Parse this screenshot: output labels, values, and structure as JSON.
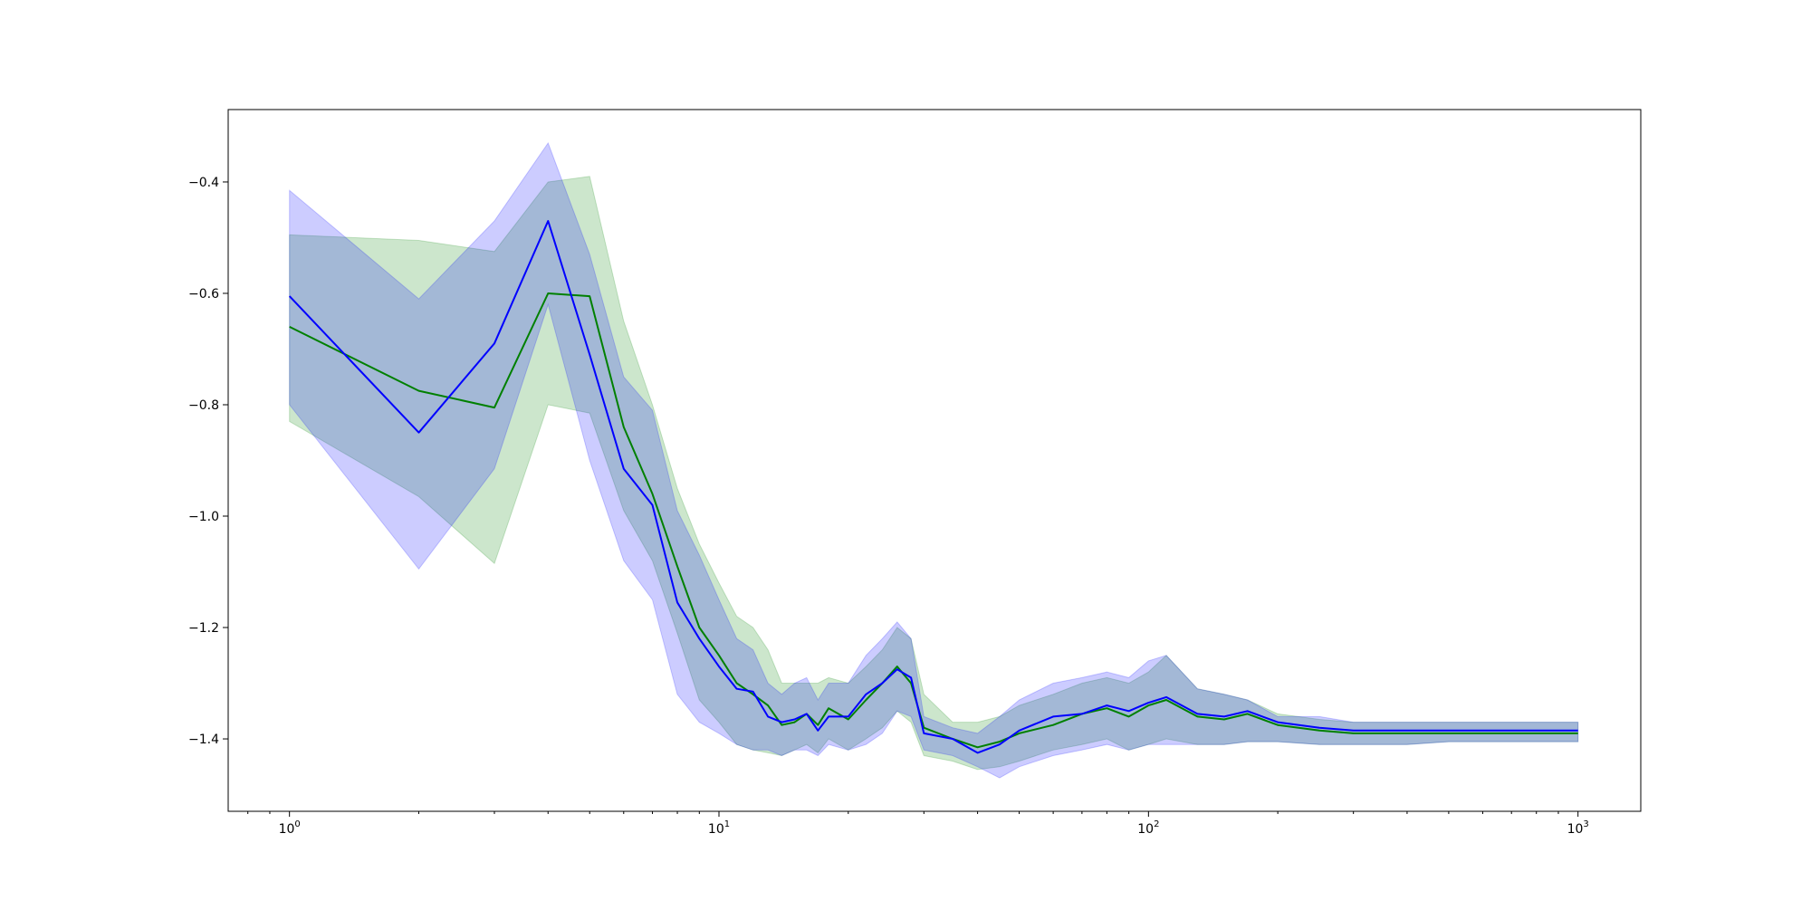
{
  "chart_data": {
    "type": "line",
    "title": "",
    "xlabel": "",
    "ylabel": "",
    "xscale": "log",
    "xlim": [
      0.72,
      1400
    ],
    "ylim": [
      -1.53,
      -0.27
    ],
    "grid": false,
    "legend": "none",
    "x_ticks": [
      {
        "value": 1,
        "base": "10",
        "exp": "0"
      },
      {
        "value": 10,
        "base": "10",
        "exp": "1"
      },
      {
        "value": 100,
        "base": "10",
        "exp": "2"
      },
      {
        "value": 1000,
        "base": "10",
        "exp": "3"
      }
    ],
    "y_ticks": [
      {
        "value": -0.4,
        "label": "−0.4"
      },
      {
        "value": -0.6,
        "label": "−0.6"
      },
      {
        "value": -0.8,
        "label": "−0.8"
      },
      {
        "value": -1.0,
        "label": "−1.0"
      },
      {
        "value": -1.2,
        "label": "−1.2"
      },
      {
        "value": -1.4,
        "label": "−1.4"
      }
    ],
    "series": [
      {
        "color": "#008000",
        "band_color": "#008000",
        "band_opacity": 0.2,
        "x": [
          1,
          2,
          3,
          4,
          5,
          6,
          7,
          8,
          9,
          10,
          11,
          12,
          13,
          14,
          15,
          16,
          17,
          18,
          20,
          22,
          24,
          26,
          28,
          30,
          35,
          40,
          45,
          50,
          60,
          70,
          80,
          90,
          100,
          110,
          130,
          150,
          170,
          200,
          250,
          300,
          400,
          500,
          700,
          1000
        ],
        "y": [
          -0.66,
          -0.775,
          -0.805,
          -0.6,
          -0.605,
          -0.84,
          -0.96,
          -1.09,
          -1.2,
          -1.25,
          -1.3,
          -1.32,
          -1.34,
          -1.375,
          -1.37,
          -1.355,
          -1.375,
          -1.345,
          -1.365,
          -1.33,
          -1.3,
          -1.27,
          -1.3,
          -1.38,
          -1.4,
          -1.415,
          -1.405,
          -1.39,
          -1.375,
          -1.355,
          -1.345,
          -1.36,
          -1.34,
          -1.33,
          -1.36,
          -1.365,
          -1.355,
          -1.375,
          -1.385,
          -1.39,
          -1.39,
          -1.39,
          -1.39,
          -1.39
        ],
        "lower": [
          -0.83,
          -0.965,
          -1.085,
          -0.8,
          -0.815,
          -0.99,
          -1.08,
          -1.21,
          -1.33,
          -1.37,
          -1.41,
          -1.42,
          -1.425,
          -1.43,
          -1.42,
          -1.41,
          -1.425,
          -1.4,
          -1.42,
          -1.4,
          -1.38,
          -1.35,
          -1.37,
          -1.43,
          -1.44,
          -1.455,
          -1.45,
          -1.44,
          -1.42,
          -1.41,
          -1.4,
          -1.42,
          -1.41,
          -1.4,
          -1.41,
          -1.41,
          -1.405,
          -1.405,
          -1.41,
          -1.41,
          -1.41,
          -1.405,
          -1.405,
          -1.405
        ],
        "upper": [
          -0.495,
          -0.505,
          -0.525,
          -0.4,
          -0.39,
          -0.65,
          -0.8,
          -0.95,
          -1.05,
          -1.12,
          -1.18,
          -1.2,
          -1.24,
          -1.3,
          -1.3,
          -1.3,
          -1.3,
          -1.29,
          -1.3,
          -1.27,
          -1.24,
          -1.2,
          -1.22,
          -1.32,
          -1.37,
          -1.37,
          -1.36,
          -1.34,
          -1.32,
          -1.3,
          -1.29,
          -1.3,
          -1.28,
          -1.25,
          -1.31,
          -1.32,
          -1.33,
          -1.355,
          -1.365,
          -1.37,
          -1.37,
          -1.37,
          -1.37,
          -1.37
        ]
      },
      {
        "color": "#0000ff",
        "band_color": "#0000ff",
        "band_opacity": 0.2,
        "x": [
          1,
          2,
          3,
          4,
          5,
          6,
          7,
          8,
          9,
          10,
          11,
          12,
          13,
          14,
          15,
          16,
          17,
          18,
          20,
          22,
          24,
          26,
          28,
          30,
          35,
          40,
          45,
          50,
          60,
          70,
          80,
          90,
          100,
          110,
          130,
          150,
          170,
          200,
          250,
          300,
          400,
          500,
          700,
          1000
        ],
        "y": [
          -0.605,
          -0.85,
          -0.69,
          -0.47,
          -0.71,
          -0.915,
          -0.98,
          -1.155,
          -1.22,
          -1.27,
          -1.31,
          -1.315,
          -1.36,
          -1.37,
          -1.365,
          -1.355,
          -1.385,
          -1.36,
          -1.36,
          -1.32,
          -1.3,
          -1.275,
          -1.29,
          -1.39,
          -1.4,
          -1.425,
          -1.41,
          -1.385,
          -1.36,
          -1.355,
          -1.34,
          -1.35,
          -1.335,
          -1.325,
          -1.355,
          -1.36,
          -1.35,
          -1.37,
          -1.38,
          -1.385,
          -1.385,
          -1.385,
          -1.385,
          -1.385
        ],
        "lower": [
          -0.8,
          -1.095,
          -0.915,
          -0.62,
          -0.9,
          -1.08,
          -1.15,
          -1.32,
          -1.37,
          -1.39,
          -1.41,
          -1.42,
          -1.42,
          -1.43,
          -1.42,
          -1.42,
          -1.43,
          -1.41,
          -1.42,
          -1.41,
          -1.39,
          -1.35,
          -1.36,
          -1.42,
          -1.43,
          -1.45,
          -1.47,
          -1.45,
          -1.43,
          -1.42,
          -1.41,
          -1.42,
          -1.41,
          -1.41,
          -1.41,
          -1.41,
          -1.405,
          -1.405,
          -1.41,
          -1.41,
          -1.41,
          -1.405,
          -1.405,
          -1.405
        ],
        "upper": [
          -0.415,
          -0.61,
          -0.47,
          -0.33,
          -0.53,
          -0.75,
          -0.81,
          -0.99,
          -1.07,
          -1.15,
          -1.22,
          -1.24,
          -1.3,
          -1.32,
          -1.3,
          -1.29,
          -1.33,
          -1.3,
          -1.3,
          -1.25,
          -1.22,
          -1.19,
          -1.22,
          -1.36,
          -1.38,
          -1.39,
          -1.36,
          -1.33,
          -1.3,
          -1.29,
          -1.28,
          -1.29,
          -1.26,
          -1.25,
          -1.31,
          -1.32,
          -1.33,
          -1.36,
          -1.36,
          -1.37,
          -1.37,
          -1.37,
          -1.37,
          -1.37
        ]
      }
    ]
  }
}
